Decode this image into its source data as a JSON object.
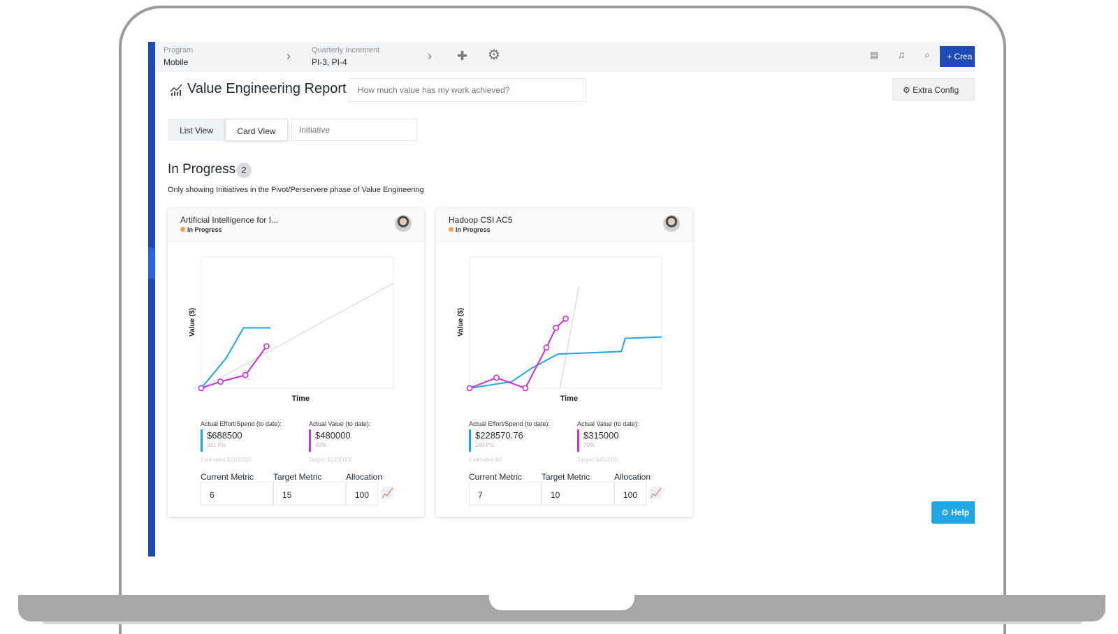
{
  "topbar": {
    "program_label": "Program",
    "program_value": "Mobile",
    "increment_label": "Quarterly Increment",
    "increment_value": "PI-3, PI-4",
    "create_label": "Crea"
  },
  "header": {
    "title": "Value Engineering Report",
    "question_placeholder": "How much value has my work achieved?",
    "extra_config_label": "Extra Config"
  },
  "views": {
    "tabs": [
      "List View",
      "Card View"
    ],
    "active": "Card View",
    "filter_placeholder": "Initiative"
  },
  "section": {
    "title": "In Progress",
    "count": "2",
    "subtitle": "Only showing Initiatives in the Pivot/Perservere phase of Value Engineering"
  },
  "help_label": "Help",
  "colors": {
    "effort": "#1ea7e4",
    "value": "#c730d8",
    "brand": "#1f4bb7",
    "status_dot": "#f2a14a"
  },
  "cards": [
    {
      "name": "Artificial Intelligence for I...",
      "status": "In Progress",
      "effort_label": "Actual Effort/Spend (to date):",
      "effort_value": "$688500",
      "effort_sub": "341 Pts",
      "effort_estimate": "Estimated:$1100000",
      "value_label": "Actual Value (to date):",
      "value_value": "$480000",
      "value_sub": "40%",
      "value_target": "Target: $1200000",
      "current_metric_label": "Current Metric",
      "target_metric_label": "Target Metric",
      "allocation_label": "Allocation",
      "current_metric": "6",
      "target_metric": "15",
      "allocation": "100"
    },
    {
      "name": "Hadoop CSI AC5",
      "status": "In Progress",
      "effort_label": "Actual Effort/Spend (to date):",
      "effort_value": "$228570.76",
      "effort_sub": "160 Pts",
      "effort_estimate": "Estimated:$0",
      "value_label": "Actual Value (to date):",
      "value_value": "$315000",
      "value_sub": "70%",
      "value_target": "Target: $450000",
      "current_metric_label": "Current Metric",
      "target_metric_label": "Target Metric",
      "allocation_label": "Allocation",
      "current_metric": "7",
      "target_metric": "10",
      "allocation": "100"
    }
  ],
  "chart_data": [
    {
      "type": "line",
      "xlabel": "Time",
      "ylabel": "Value ($)",
      "xlim": [
        0,
        10
      ],
      "ylim": [
        0,
        10
      ],
      "series": [
        {
          "color": "#dddddd",
          "x": [
            0,
            10
          ],
          "y": [
            0,
            8
          ]
        },
        {
          "color": "#1ea7e4",
          "x": [
            0,
            1.3,
            2.2,
            3.6
          ],
          "y": [
            0,
            2.3,
            4.6,
            4.6
          ]
        },
        {
          "color": "#c730d8",
          "markers": true,
          "x": [
            0,
            1,
            2.3,
            3.4
          ],
          "y": [
            0,
            0.5,
            1,
            3.2
          ]
        }
      ]
    },
    {
      "type": "line",
      "xlabel": "Time",
      "ylabel": "Value ($)",
      "xlim": [
        0,
        10
      ],
      "ylim": [
        0,
        10
      ],
      "series": [
        {
          "color": "#dddddd",
          "x": [
            4.7,
            5.7
          ],
          "y": [
            0,
            7.8
          ]
        },
        {
          "color": "#1ea7e4",
          "x": [
            0,
            2.2,
            3.2,
            4.6,
            7.9,
            8.1,
            10
          ],
          "y": [
            0,
            0.5,
            1.5,
            2.6,
            2.8,
            3.8,
            3.9
          ]
        },
        {
          "color": "#c730d8",
          "markers": true,
          "x": [
            0,
            1.4,
            2.9,
            4,
            4.5,
            5
          ],
          "y": [
            0,
            0.8,
            0,
            3.1,
            4.6,
            5.3
          ]
        }
      ]
    }
  ]
}
